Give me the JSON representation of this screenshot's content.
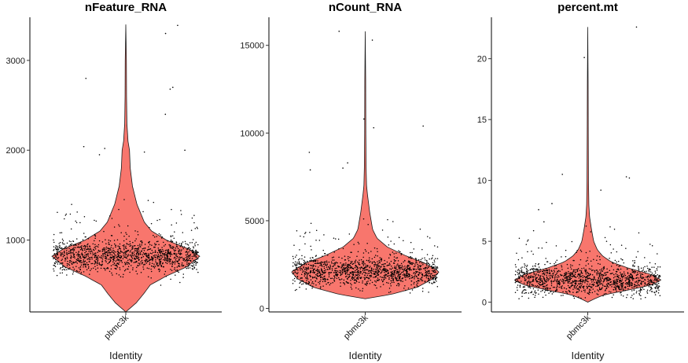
{
  "chart_data": [
    {
      "type": "violin",
      "title": "nFeature_RNA",
      "xlabel": "Identity",
      "category": "pbmc3k",
      "ylim": [
        200,
        3480
      ],
      "yticks": [
        1000,
        2000,
        3000
      ],
      "ytick_labels": [
        "1000",
        "2000",
        "3000"
      ],
      "fill_color": "#F8766D",
      "point_color": "#000000",
      "min": 200,
      "max": 3400,
      "mode": 820,
      "profile": [
        [
          200,
          0.0
        ],
        [
          300,
          0.14
        ],
        [
          400,
          0.24
        ],
        [
          500,
          0.33
        ],
        [
          600,
          0.55
        ],
        [
          700,
          0.82
        ],
        [
          820,
          1.0
        ],
        [
          900,
          0.85
        ],
        [
          1000,
          0.55
        ],
        [
          1100,
          0.35
        ],
        [
          1200,
          0.25
        ],
        [
          1400,
          0.15
        ],
        [
          1600,
          0.09
        ],
        [
          1800,
          0.06
        ],
        [
          2000,
          0.05
        ],
        [
          2100,
          0.03
        ],
        [
          2300,
          0.015
        ],
        [
          2600,
          0.01
        ],
        [
          3000,
          0.008
        ],
        [
          3400,
          0.0
        ]
      ],
      "outliers": [
        3300,
        3390,
        2800,
        2700,
        2680,
        2400,
        2040,
        2020,
        2000,
        1980,
        1950
      ]
    },
    {
      "type": "violin",
      "title": "nCount_RNA",
      "xlabel": "Identity",
      "category": "pbmc3k",
      "ylim": [
        -200,
        16600
      ],
      "yticks": [
        0,
        5000,
        10000,
        15000
      ],
      "ytick_labels": [
        "0",
        "5000",
        "10000",
        "15000"
      ],
      "fill_color": "#F8766D",
      "point_color": "#000000",
      "min": 550,
      "max": 15800,
      "mode": 2100,
      "profile": [
        [
          550,
          0.0
        ],
        [
          800,
          0.35
        ],
        [
          1200,
          0.7
        ],
        [
          1700,
          0.92
        ],
        [
          2100,
          1.0
        ],
        [
          2600,
          0.8
        ],
        [
          3000,
          0.55
        ],
        [
          3500,
          0.3
        ],
        [
          4000,
          0.16
        ],
        [
          4500,
          0.1
        ],
        [
          5000,
          0.08
        ],
        [
          5500,
          0.06
        ],
        [
          6000,
          0.045
        ],
        [
          6500,
          0.03
        ],
        [
          7000,
          0.018
        ],
        [
          8000,
          0.012
        ],
        [
          10000,
          0.008
        ],
        [
          13000,
          0.006
        ],
        [
          15800,
          0.0
        ]
      ],
      "outliers": [
        15300,
        15800,
        10800,
        10400,
        10300,
        8900,
        8300,
        8000,
        7900
      ]
    },
    {
      "type": "violin",
      "title": "percent.mt",
      "xlabel": "Identity",
      "category": "pbmc3k",
      "ylim": [
        -0.8,
        23.4
      ],
      "yticks": [
        0,
        5,
        10,
        15,
        20
      ],
      "ytick_labels": [
        "0",
        "5",
        "10",
        "15",
        "20"
      ],
      "fill_color": "#F8766D",
      "point_color": "#000000",
      "min": 0,
      "max": 22.6,
      "mode": 1.8,
      "profile": [
        [
          0.0,
          0.0
        ],
        [
          0.3,
          0.1
        ],
        [
          0.6,
          0.22
        ],
        [
          1.0,
          0.55
        ],
        [
          1.4,
          0.85
        ],
        [
          1.8,
          1.0
        ],
        [
          2.3,
          0.85
        ],
        [
          2.8,
          0.55
        ],
        [
          3.3,
          0.32
        ],
        [
          3.8,
          0.2
        ],
        [
          4.3,
          0.13
        ],
        [
          5.0,
          0.08
        ],
        [
          6.0,
          0.05
        ],
        [
          7.0,
          0.025
        ],
        [
          8.0,
          0.015
        ],
        [
          10.0,
          0.01
        ],
        [
          14.0,
          0.007
        ],
        [
          18.0,
          0.005
        ],
        [
          22.6,
          0.0
        ]
      ],
      "outliers": [
        22.6,
        20.1,
        10.5,
        10.3,
        10.2,
        9.2,
        8.1,
        7.6,
        6.6
      ]
    }
  ]
}
